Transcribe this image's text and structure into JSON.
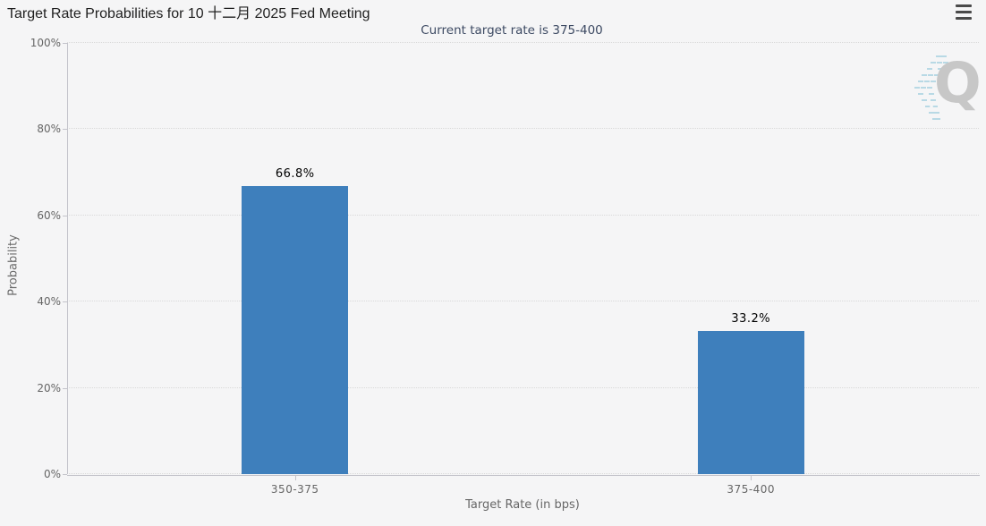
{
  "header": {
    "title": "Target Rate Probabilities for 10 十二月 2025 Fed Meeting",
    "menu_icon": "hamburger-menu"
  },
  "chart_data": {
    "type": "bar",
    "title": "Target Rate Probabilities for 10 十二月 2025 Fed Meeting",
    "subtitle": "Current target rate is 375-400",
    "categories": [
      "350-375",
      "375-400"
    ],
    "values": [
      66.8,
      33.2
    ],
    "value_labels": [
      "66.8%",
      "33.2%"
    ],
    "xlabel": "Target Rate (in bps)",
    "ylabel": "Probability",
    "ylim": [
      0,
      100
    ],
    "yticks": [
      0,
      20,
      40,
      60,
      80,
      100
    ],
    "ytick_labels": [
      "0%",
      "20%",
      "40%",
      "60%",
      "80%",
      "100%"
    ],
    "grid": "horizontal-dotted",
    "legend": "none",
    "bar_color": "#3e7fbc"
  },
  "watermark": {
    "letter": "Q"
  },
  "colors": {
    "background": "#f5f5f6",
    "bar": "#3e7fbc",
    "title_text": "#1f1f1f",
    "subtitle_text": "#3d4a63",
    "axis_text": "#666666",
    "grid_line": "#d9d9d9",
    "axis_line": "#c3c3ca",
    "value_label": "#000000",
    "watermark_q": "#c7c7c7",
    "watermark_dashes": "#b2d6e4",
    "menu_icon": "#4a4a4a"
  }
}
